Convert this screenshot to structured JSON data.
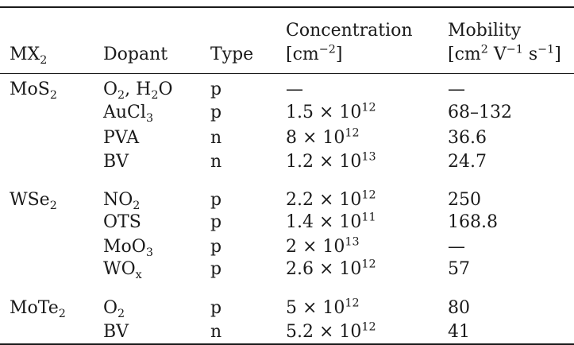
{
  "headers": {
    "mx": "MX",
    "mx_sub": "2",
    "dopant": "Dopant",
    "type": "Type",
    "conc_line1": "Concentration",
    "conc_unit_pre": "[cm",
    "conc_unit_sup": "−2",
    "conc_unit_post": "]",
    "mob_line1": "Mobility",
    "mob_u1": "[cm",
    "mob_u1_sup": "2",
    "mob_u2": " V",
    "mob_u2_sup": "−1",
    "mob_u3": " s",
    "mob_u3_sup": "−1",
    "mob_u4": "]"
  },
  "rows": [
    {
      "mx": "MoS",
      "mx_sub": "2",
      "dopant_html": "O<sub>2</sub>, H<sub>2</sub>O",
      "type": "p",
      "conc_base": "—",
      "conc_exp": "",
      "mobility": "—"
    },
    {
      "mx": "",
      "mx_sub": "",
      "dopant_html": "AuCl<sub>3</sub>",
      "type": "p",
      "conc_base": "1.5 × 10",
      "conc_exp": "12",
      "mobility": "68–132"
    },
    {
      "mx": "",
      "mx_sub": "",
      "dopant_html": "PVA",
      "type": "n",
      "conc_base": "8 × 10",
      "conc_exp": "12",
      "mobility": "36.6"
    },
    {
      "mx": "",
      "mx_sub": "",
      "dopant_html": "BV",
      "type": "n",
      "conc_base": "1.2 × 10",
      "conc_exp": "13",
      "mobility": "24.7"
    },
    {
      "mx": "WSe",
      "mx_sub": "2",
      "dopant_html": "NO<sub>2</sub>",
      "type": "p",
      "conc_base": "2.2 × 10",
      "conc_exp": "12",
      "mobility": "250"
    },
    {
      "mx": "",
      "mx_sub": "",
      "dopant_html": "OTS",
      "type": "p",
      "conc_base": "1.4 × 10",
      "conc_exp": "11",
      "mobility": "168.8"
    },
    {
      "mx": "",
      "mx_sub": "",
      "dopant_html": "MoO<sub>3</sub>",
      "type": "p",
      "conc_base": "2 × 10",
      "conc_exp": "13",
      "mobility": "—"
    },
    {
      "mx": "",
      "mx_sub": "",
      "dopant_html": "WO<sub>x</sub>",
      "type": "p",
      "conc_base": "2.6 × 10",
      "conc_exp": "12",
      "mobility": "57"
    },
    {
      "mx": "MoTe",
      "mx_sub": "2",
      "dopant_html": "O<sub>2</sub>",
      "type": "p",
      "conc_base": "5 × 10",
      "conc_exp": "12",
      "mobility": "80"
    },
    {
      "mx": "",
      "mx_sub": "",
      "dopant_html": "BV",
      "type": "n",
      "conc_base": "5.2 × 10",
      "conc_exp": "12",
      "mobility": "41"
    }
  ]
}
